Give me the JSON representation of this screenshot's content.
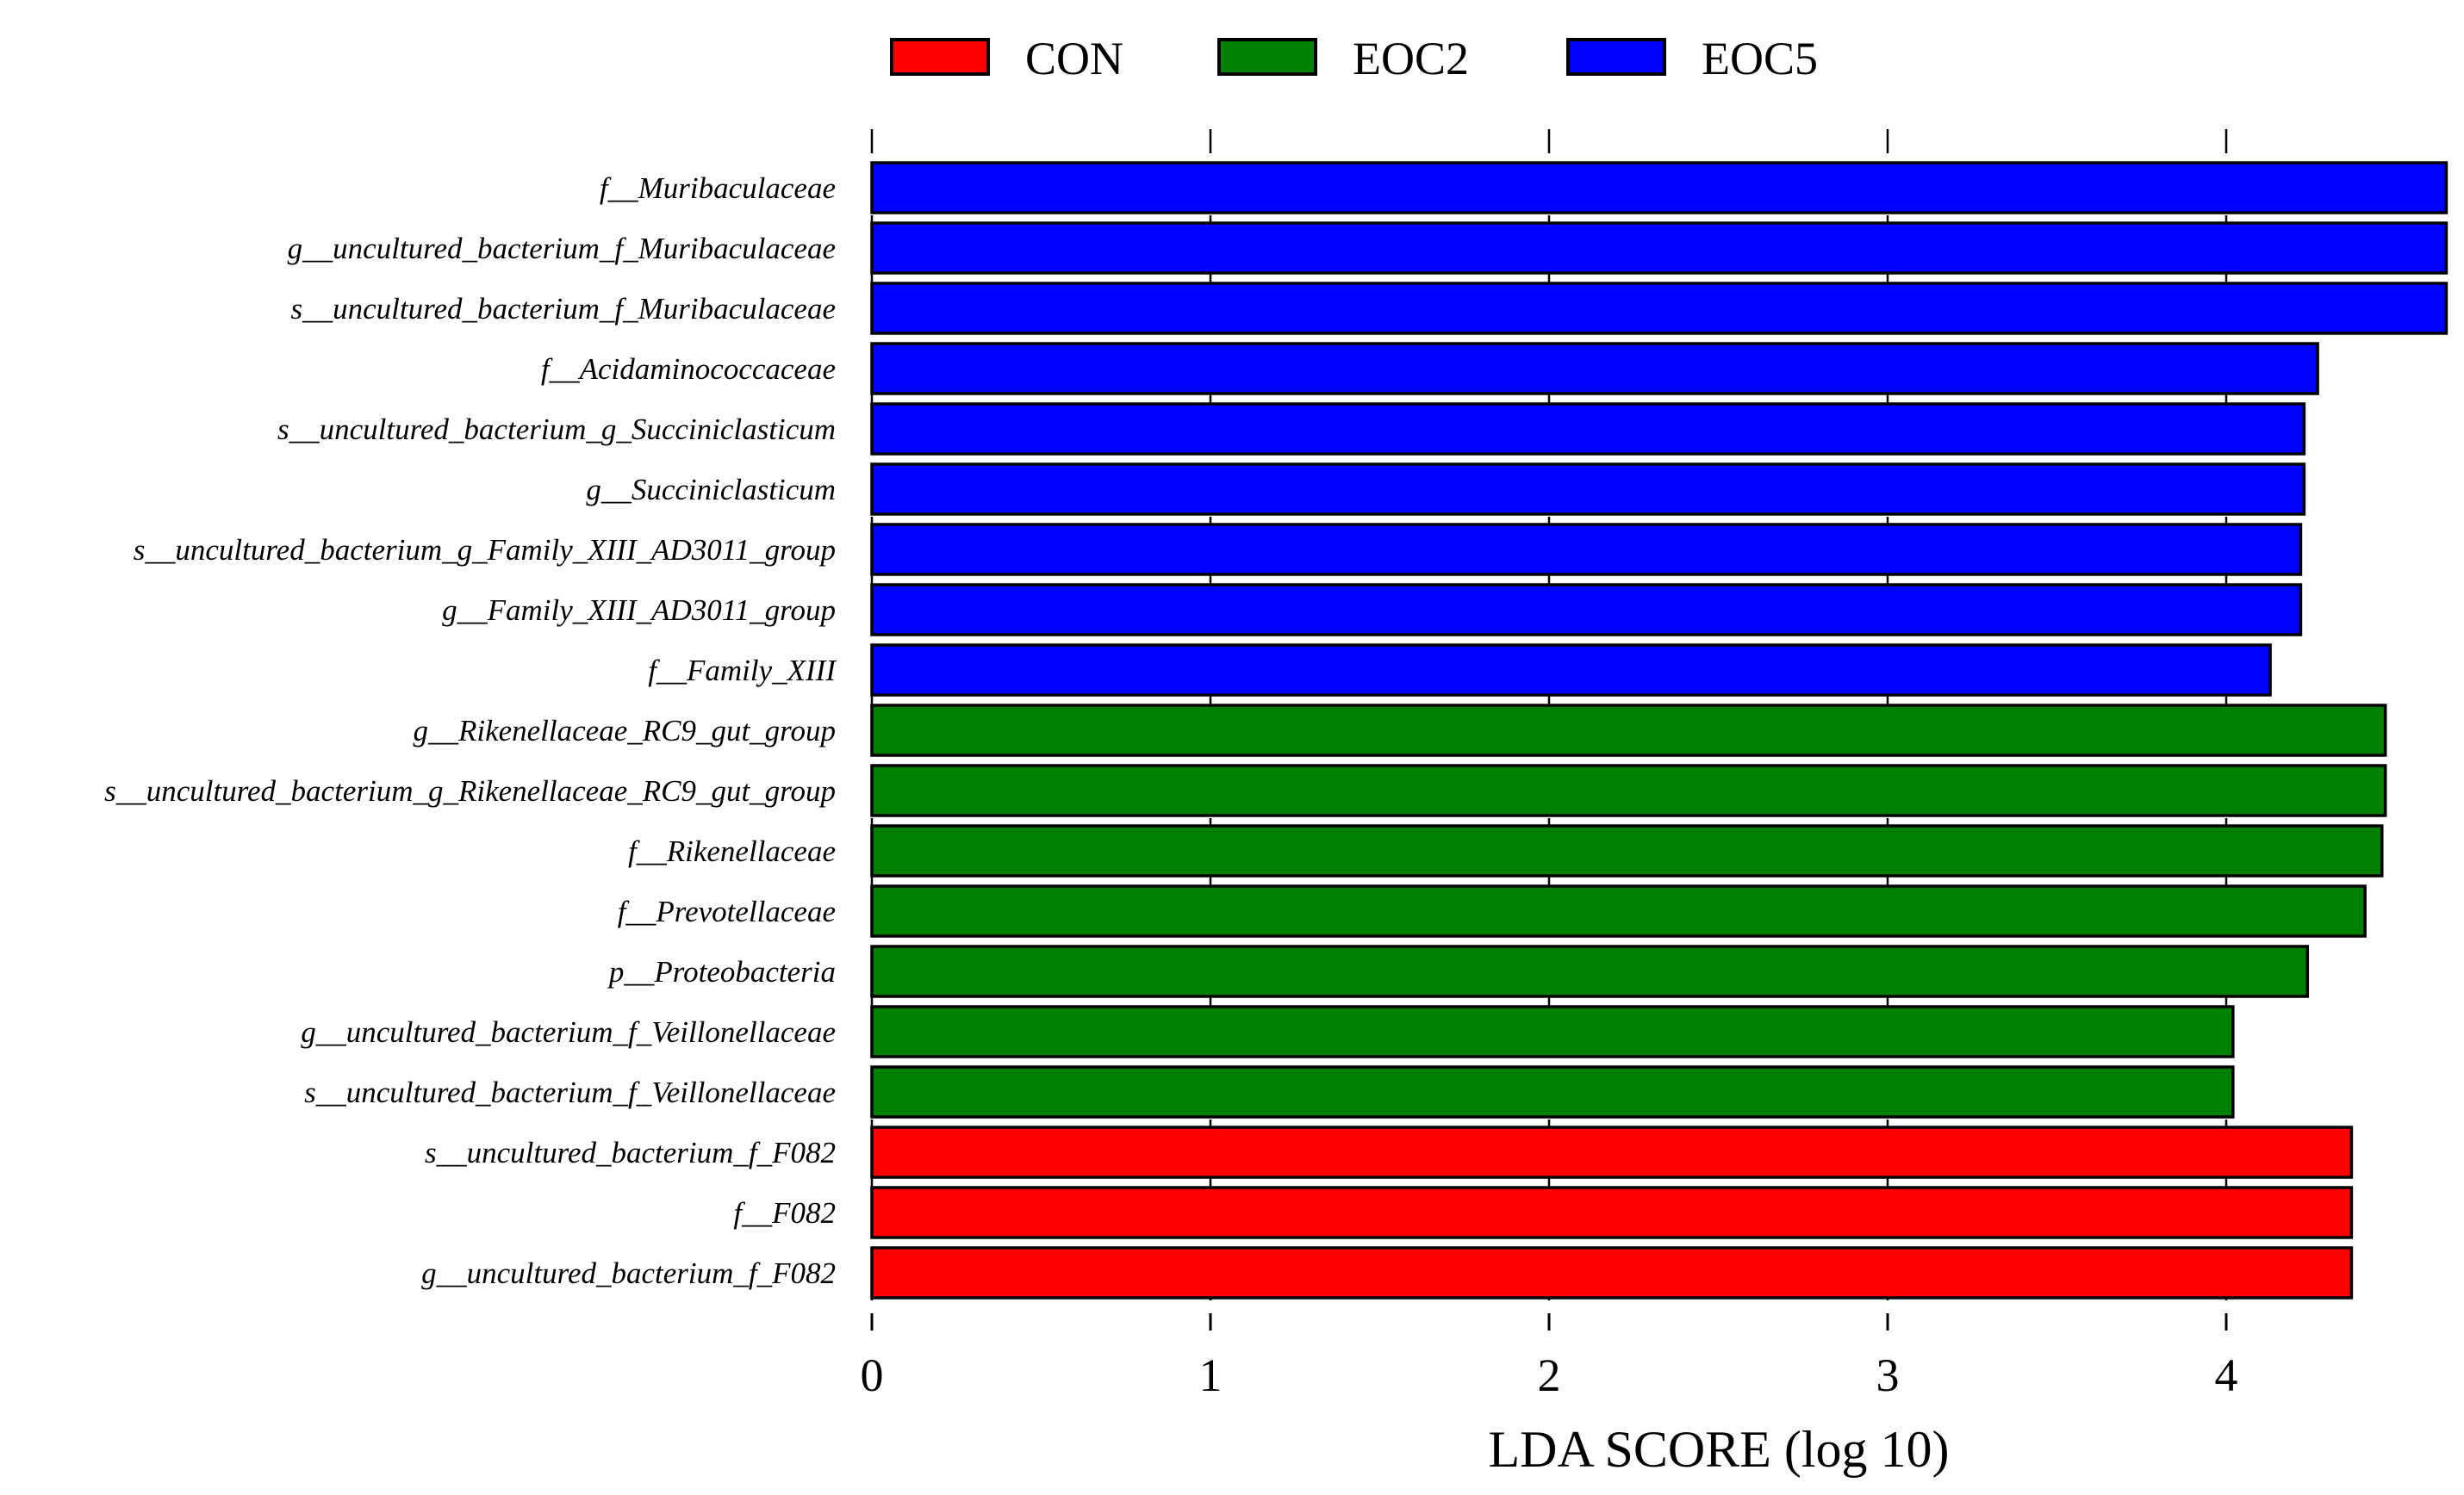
{
  "chart_data": {
    "type": "bar",
    "orientation": "horizontal",
    "title": "",
    "xlabel": "LDA SCORE (log 10)",
    "ylabel": "",
    "xlim": [
      0,
      4.65
    ],
    "xticks": [
      0,
      1,
      2,
      3,
      4
    ],
    "grid": "dashed vertical at ticks",
    "legend_position": "top",
    "groups": [
      {
        "name": "CON",
        "color": "#ff0000"
      },
      {
        "name": "EOC2",
        "color": "#008000"
      },
      {
        "name": "EOC5",
        "color": "#0000ff"
      }
    ],
    "bars": [
      {
        "label": "f__Muribaculaceae",
        "value": 4.65,
        "group": "EOC5"
      },
      {
        "label": "g__uncultured_bacterium_f_Muribaculaceae",
        "value": 4.65,
        "group": "EOC5"
      },
      {
        "label": "s__uncultured_bacterium_f_Muribaculaceae",
        "value": 4.65,
        "group": "EOC5"
      },
      {
        "label": "f__Acidaminococcaceae",
        "value": 4.27,
        "group": "EOC5"
      },
      {
        "label": "s__uncultured_bacterium_g_Succiniclasticum",
        "value": 4.23,
        "group": "EOC5"
      },
      {
        "label": "g__Succiniclasticum",
        "value": 4.23,
        "group": "EOC5"
      },
      {
        "label": "s__uncultured_bacterium_g_Family_XIII_AD3011_group",
        "value": 4.22,
        "group": "EOC5"
      },
      {
        "label": "g__Family_XIII_AD3011_group",
        "value": 4.22,
        "group": "EOC5"
      },
      {
        "label": "f__Family_XIII",
        "value": 4.13,
        "group": "EOC5"
      },
      {
        "label": "g__Rikenellaceae_RC9_gut_group",
        "value": 4.47,
        "group": "EOC2"
      },
      {
        "label": "s__uncultured_bacterium_g_Rikenellaceae_RC9_gut_group",
        "value": 4.47,
        "group": "EOC2"
      },
      {
        "label": "f__Rikenellaceae",
        "value": 4.46,
        "group": "EOC2"
      },
      {
        "label": "f__Prevotellaceae",
        "value": 4.41,
        "group": "EOC2"
      },
      {
        "label": "p__Proteobacteria",
        "value": 4.24,
        "group": "EOC2"
      },
      {
        "label": "g__uncultured_bacterium_f_Veillonellaceae",
        "value": 4.02,
        "group": "EOC2"
      },
      {
        "label": "s__uncultured_bacterium_f_Veillonellaceae",
        "value": 4.02,
        "group": "EOC2"
      },
      {
        "label": "s__uncultured_bacterium_f_F082",
        "value": 4.37,
        "group": "CON"
      },
      {
        "label": "f__F082",
        "value": 4.37,
        "group": "CON"
      },
      {
        "label": "g__uncultured_bacterium_f_F082",
        "value": 4.37,
        "group": "CON"
      }
    ]
  }
}
